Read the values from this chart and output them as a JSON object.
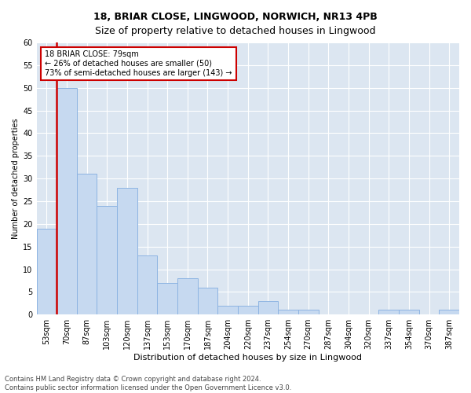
{
  "title1": "18, BRIAR CLOSE, LINGWOOD, NORWICH, NR13 4PB",
  "title2": "Size of property relative to detached houses in Lingwood",
  "xlabel": "Distribution of detached houses by size in Lingwood",
  "ylabel": "Number of detached properties",
  "categories": [
    "53sqm",
    "70sqm",
    "87sqm",
    "103sqm",
    "120sqm",
    "137sqm",
    "153sqm",
    "170sqm",
    "187sqm",
    "204sqm",
    "220sqm",
    "237sqm",
    "254sqm",
    "270sqm",
    "287sqm",
    "304sqm",
    "320sqm",
    "337sqm",
    "354sqm",
    "370sqm",
    "387sqm"
  ],
  "values": [
    19,
    50,
    31,
    24,
    28,
    13,
    7,
    8,
    6,
    2,
    2,
    3,
    1,
    1,
    0,
    0,
    0,
    1,
    1,
    0,
    1
  ],
  "bar_color": "#c6d9f0",
  "bar_edge_color": "#8db4e2",
  "vline_color": "#cc0000",
  "vline_x_index": 1,
  "annotation_line1": "18 BRIAR CLOSE: 79sqm",
  "annotation_line2": "← 26% of detached houses are smaller (50)",
  "annotation_line3": "73% of semi-detached houses are larger (143) →",
  "annotation_box_facecolor": "#ffffff",
  "annotation_box_edgecolor": "#cc0000",
  "ylim": [
    0,
    60
  ],
  "yticks": [
    0,
    5,
    10,
    15,
    20,
    25,
    30,
    35,
    40,
    45,
    50,
    55,
    60
  ],
  "footer1": "Contains HM Land Registry data © Crown copyright and database right 2024.",
  "footer2": "Contains public sector information licensed under the Open Government Licence v3.0.",
  "fig_facecolor": "#ffffff",
  "plot_facecolor": "#dce6f1",
  "title1_fontsize": 9,
  "title2_fontsize": 9,
  "xlabel_fontsize": 8,
  "ylabel_fontsize": 7,
  "tick_fontsize": 7,
  "annotation_fontsize": 7,
  "footer_fontsize": 6
}
